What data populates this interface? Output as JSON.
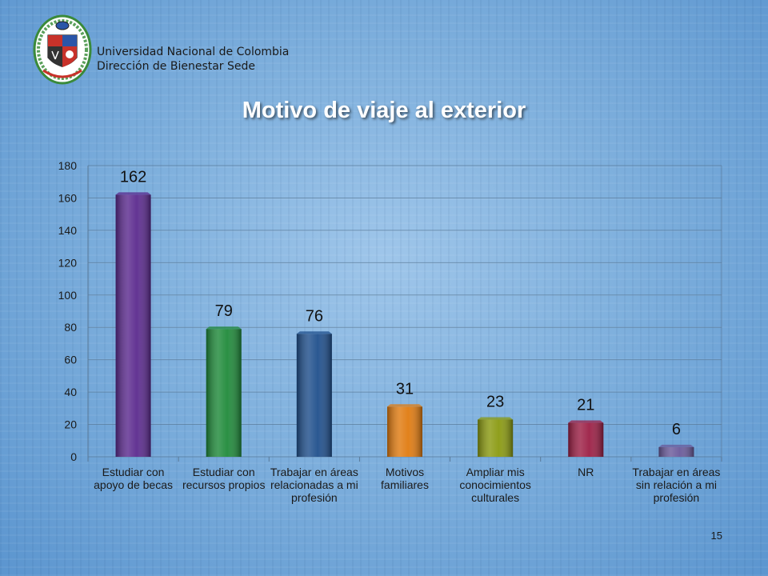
{
  "header": {
    "university": "Universidad Nacional de Colombia",
    "department": "Dirección de Bienestar Sede"
  },
  "slide": {
    "page_number": "15"
  },
  "chart_data": {
    "type": "bar",
    "title": "Motivo de viaje al exterior",
    "categories": [
      "Estudiar con apoyo de becas",
      "Estudiar con recursos propios",
      "Trabajar en áreas relacionadas a mi profesión",
      "Motivos familiares",
      "Ampliar mis conocimientos culturales",
      "NR",
      "Trabajar en áreas sin relación a mi profesión"
    ],
    "values": [
      162,
      79,
      76,
      31,
      23,
      21,
      6
    ],
    "bar_colors": [
      "#5b2a8e",
      "#1f8a3a",
      "#1f4f8c",
      "#e07b10",
      "#8a9a10",
      "#9c1f45",
      "#6a5a9a"
    ],
    "ylim": [
      0,
      180
    ],
    "yticks": [
      0,
      20,
      40,
      60,
      80,
      100,
      120,
      140,
      160,
      180
    ],
    "grid": true,
    "legend": "none",
    "xlabel": "",
    "ylabel": ""
  }
}
